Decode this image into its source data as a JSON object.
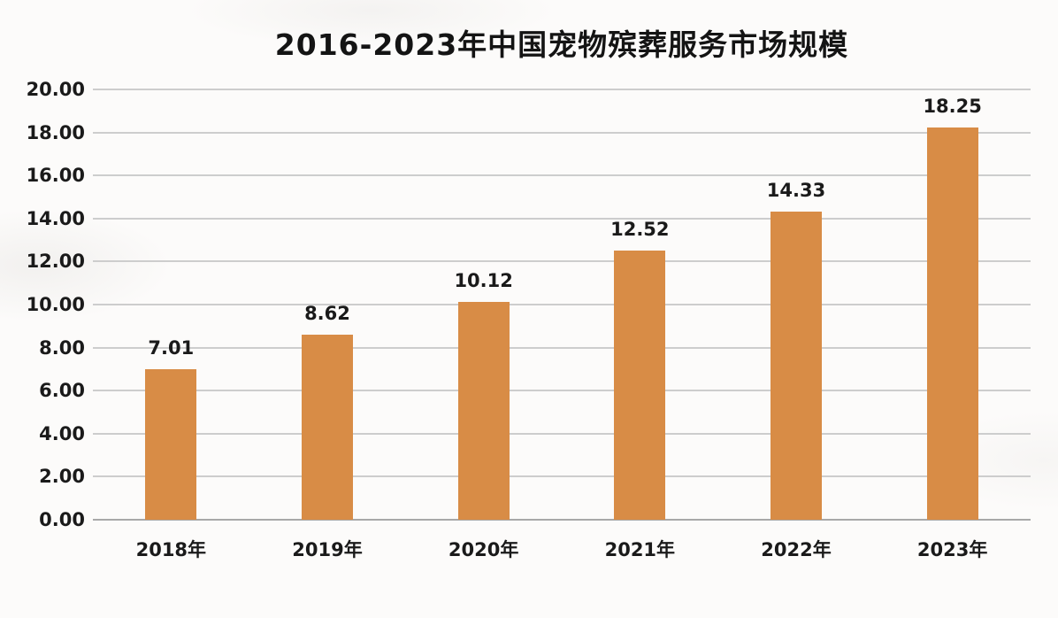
{
  "page": {
    "background_color": "#FCFBFA"
  },
  "chart_data": {
    "type": "bar",
    "title": "2016-2023年中国宠物殡葬服务市场规模",
    "categories": [
      "2018年",
      "2019年",
      "2020年",
      "2021年",
      "2022年",
      "2023年"
    ],
    "values": [
      7.01,
      8.62,
      10.12,
      12.52,
      14.33,
      18.25
    ],
    "value_labels": [
      "7.01",
      "8.62",
      "10.12",
      "12.52",
      "14.33",
      "18.25"
    ],
    "xlabel": "",
    "ylabel": "",
    "ylim": [
      0,
      20
    ],
    "ytick_interval": 2,
    "ytick_labels_top_to_bottom": [
      "20.00",
      "18.00",
      "16.00",
      "14.00",
      "12.00",
      "10.00",
      "8.00",
      "6.00",
      "4.00",
      "2.00",
      "0.00"
    ],
    "grid": true,
    "legend": "none",
    "colors": {
      "bar": "#D88C46",
      "gridline": "#CDCDCD",
      "axis_line": "#A8A8A8",
      "text": "#1A1A1A"
    }
  }
}
